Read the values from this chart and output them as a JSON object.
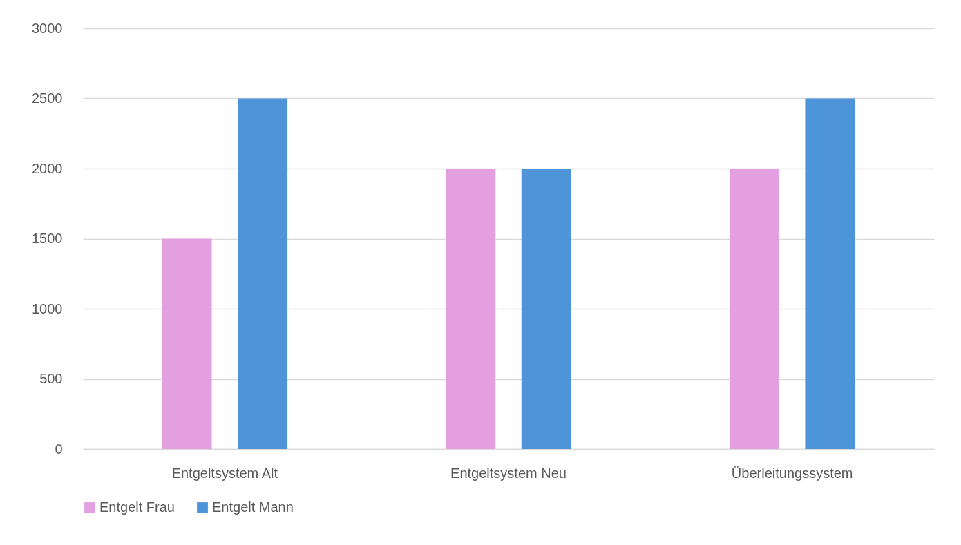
{
  "chart_data": {
    "type": "bar",
    "categories": [
      "Entgeltsystem Alt",
      "Entgeltsystem Neu",
      "Überleitungssystem"
    ],
    "series": [
      {
        "name": "Entgelt Frau",
        "color": "#e39fdf",
        "values": [
          1500,
          2000,
          2000
        ]
      },
      {
        "name": "Entgelt Mann",
        "color": "#4d94d9",
        "values": [
          2500,
          2000,
          2500
        ]
      }
    ],
    "ylim": [
      0,
      3000
    ],
    "yticks": [
      0,
      500,
      1000,
      1500,
      2000,
      2500,
      3000
    ],
    "grid": "y",
    "legend": "bottom"
  }
}
